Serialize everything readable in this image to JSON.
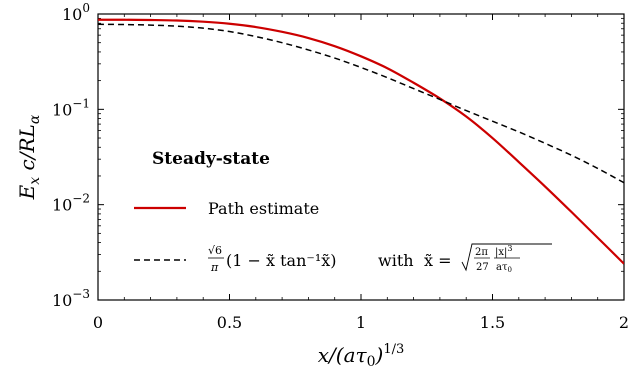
{
  "chart_data": {
    "type": "line",
    "xlabel": "x/(aτ₀)^{1/3}",
    "ylabel": "E_x c/RL_α",
    "xlim": [
      0,
      2
    ],
    "ylim": [
      0.001,
      1
    ],
    "yscale": "log",
    "x_ticks": [
      "0",
      "0.5",
      "1",
      "1.5",
      "2"
    ],
    "y_ticks": [
      {
        "base": "10",
        "exp": "0"
      },
      {
        "base": "10",
        "exp": "−1"
      },
      {
        "base": "10",
        "exp": "−2"
      },
      {
        "base": "10",
        "exp": "−3"
      }
    ],
    "legend": {
      "title": "Steady-state",
      "position": "lower-left"
    },
    "series": [
      {
        "name": "Path estimate",
        "color": "#cc0000",
        "style": "solid",
        "x": [
          0,
          0.1,
          0.2,
          0.3,
          0.4,
          0.5,
          0.6,
          0.7,
          0.8,
          0.9,
          1.0,
          1.1,
          1.2,
          1.3,
          1.4,
          1.5,
          1.6,
          1.7,
          1.8,
          1.9,
          2.0
        ],
        "y": [
          0.87,
          0.87,
          0.865,
          0.855,
          0.83,
          0.79,
          0.73,
          0.65,
          0.56,
          0.46,
          0.36,
          0.27,
          0.19,
          0.13,
          0.084,
          0.05,
          0.028,
          0.0155,
          0.0084,
          0.0045,
          0.0024
        ]
      },
      {
        "name": "√6/π (1 − x̃ tan⁻¹x̃)   with   x̃ = √(2π/27 · |x|³/aτ₀)",
        "color": "#000000",
        "style": "dashed",
        "x": [
          0,
          0.1,
          0.2,
          0.3,
          0.4,
          0.5,
          0.6,
          0.7,
          0.8,
          0.9,
          1.0,
          1.1,
          1.2,
          1.3,
          1.4,
          1.5,
          1.6,
          1.7,
          1.8,
          1.9,
          2.0
        ],
        "y": [
          0.78,
          0.775,
          0.765,
          0.745,
          0.71,
          0.655,
          0.58,
          0.5,
          0.42,
          0.345,
          0.275,
          0.215,
          0.165,
          0.127,
          0.097,
          0.075,
          0.058,
          0.044,
          0.033,
          0.024,
          0.017
        ]
      }
    ]
  },
  "legend_entries": {
    "solid": "Path estimate",
    "dashed_part1": "(1 − x̃ tan⁻¹x̃)",
    "dashed_with": "with",
    "dashed_x": "x̃ ="
  },
  "colors": {
    "path": "#cc0000",
    "analytic": "#000000",
    "background": "#ffffff"
  }
}
